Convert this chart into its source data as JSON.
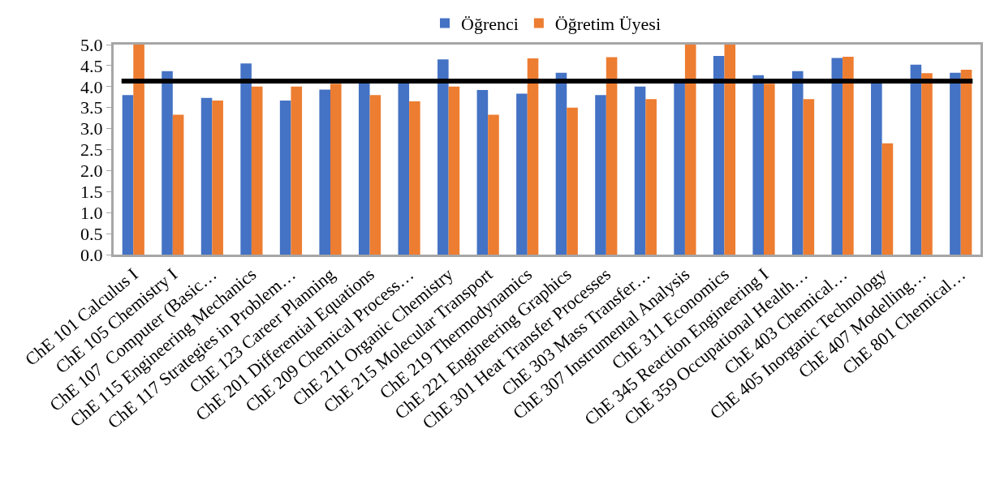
{
  "chart_data": {
    "type": "bar",
    "categories": [
      "ChE 101 Calculus I",
      "ChE 105 Chemistry I",
      "ChE 107  Computer (Basic…",
      "ChE 115 Engineering Mechanics",
      "ChE 117 Strategies in Problem…",
      "ChE 123 Career Planning",
      "ChE 201 Differential Equations",
      "ChE 209 Chemical Process…",
      "ChE 211 Organic Chemistry",
      "ChE 215 Molecular Transport",
      "ChE 219 Thermodynamics",
      "ChE 221 Engineering Graphics",
      "ChE 301 Heat Transfer Processes",
      "ChE 303 Mass Transfer…",
      "ChE 307 Instrumental Analysis",
      "ChE 311 Economics",
      "ChE 345 Reaction Engineering I",
      "ChE 359 Occupational Health…",
      "ChE 403 Chemical…",
      "ChE 405 Inorganic Technology",
      "ChE 407 Modelling…",
      "ChE 801 Chemical…"
    ],
    "series": [
      {
        "name": "Öğrenci",
        "color": "#4472c4",
        "values": [
          3.8,
          4.37,
          3.73,
          4.55,
          3.67,
          3.93,
          4.1,
          4.1,
          4.65,
          3.92,
          3.83,
          4.33,
          3.8,
          4.0,
          4.1,
          4.73,
          4.27,
          4.37,
          4.68,
          4.1,
          4.52,
          4.33
        ]
      },
      {
        "name": "Öğretim Üyesi",
        "color": "#ed7d31",
        "values": [
          5.0,
          3.33,
          3.67,
          4.0,
          4.0,
          4.07,
          3.8,
          3.65,
          4.0,
          3.33,
          4.67,
          3.5,
          4.7,
          3.7,
          5.0,
          5.0,
          4.07,
          3.7,
          4.71,
          2.65,
          4.32,
          4.4
        ]
      }
    ],
    "ylim": [
      0,
      5
    ],
    "yticks": [
      {
        "value": 0,
        "label": "0.0"
      },
      {
        "value": 0.5,
        "label": "0.5"
      },
      {
        "value": 1,
        "label": "1.0"
      },
      {
        "value": 1.5,
        "label": "1.5"
      },
      {
        "value": 2,
        "label": "2.0"
      },
      {
        "value": 2.5,
        "label": "2.5"
      },
      {
        "value": 3,
        "label": "3.0"
      },
      {
        "value": 3.5,
        "label": "3.5"
      },
      {
        "value": 4,
        "label": "4.0"
      },
      {
        "value": 4.5,
        "label": "4.5"
      },
      {
        "value": 5,
        "label": "5.0"
      }
    ],
    "ref_lines": [
      {
        "axis": "y",
        "value": 4.13,
        "color": "#000000"
      }
    ],
    "grid": false,
    "legend": "top"
  }
}
